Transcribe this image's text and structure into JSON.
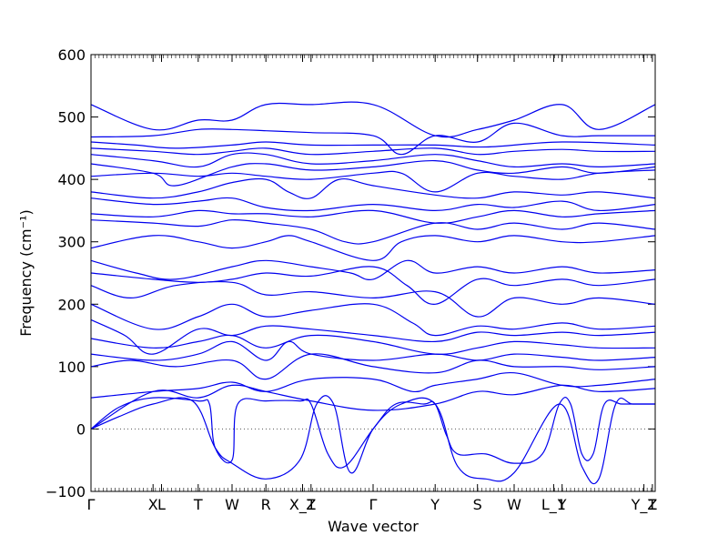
{
  "chart_data": {
    "type": "line",
    "xlabel": "Wave vector",
    "ylabel": "Frequency (cm⁻¹)",
    "ylim": [
      -100,
      600
    ],
    "yticks": [
      -100,
      0,
      100,
      200,
      300,
      400,
      500,
      600
    ],
    "ytick_labels": [
      "−100",
      "0",
      "100",
      "200",
      "300",
      "400",
      "500",
      "600"
    ],
    "x_segments": [
      {
        "label": "Γ",
        "x": 0.0
      },
      {
        "label": "X",
        "x": 1.1
      },
      {
        "label": "L",
        "x": 1.25
      },
      {
        "label": "T",
        "x": 1.9
      },
      {
        "label": "W",
        "x": 2.5
      },
      {
        "label": "R",
        "x": 3.1
      },
      {
        "label": "X_1",
        "x": 3.75
      },
      {
        "label": "Z",
        "x": 3.9
      },
      {
        "label": "Γ",
        "x": 5.0
      },
      {
        "label": "Y",
        "x": 6.1
      },
      {
        "label": "S",
        "x": 6.85
      },
      {
        "label": "W",
        "x": 7.5
      },
      {
        "label": "L_1",
        "x": 8.2
      },
      {
        "label": "Y",
        "x": 8.35
      },
      {
        "label": "Y_1",
        "x": 9.8
      },
      {
        "label": "Z",
        "x": 9.95
      }
    ],
    "xlim": [
      0,
      10.0
    ],
    "zero_line": true,
    "line_color": "#0000ee",
    "series": [
      {
        "x": [
          0,
          1.1,
          1.9,
          2.5,
          3.1,
          3.9,
          5.0,
          6.1,
          6.85,
          7.5,
          8.35,
          9.0,
          10.0
        ],
        "y": [
          520,
          480,
          495,
          495,
          520,
          520,
          520,
          470,
          480,
          495,
          520,
          480,
          520
        ]
      },
      {
        "x": [
          0,
          1.1,
          1.9,
          2.5,
          3.1,
          3.9,
          5.0,
          5.5,
          6.1,
          6.85,
          7.5,
          8.35,
          9.0,
          10.0
        ],
        "y": [
          468,
          470,
          480,
          480,
          478,
          475,
          470,
          440,
          470,
          460,
          490,
          470,
          470,
          470
        ]
      },
      {
        "x": [
          0,
          0.8,
          1.5,
          2.5,
          3.1,
          3.9,
          5.0,
          6.1,
          7.0,
          8.35,
          10.0
        ],
        "y": [
          460,
          455,
          450,
          455,
          460,
          455,
          455,
          455,
          452,
          460,
          455
        ]
      },
      {
        "x": [
          0,
          1.1,
          1.9,
          2.5,
          3.1,
          3.9,
          5.0,
          6.1,
          6.85,
          7.5,
          8.35,
          9.0,
          10.0
        ],
        "y": [
          450,
          445,
          440,
          445,
          450,
          440,
          445,
          450,
          440,
          445,
          448,
          445,
          445
        ]
      },
      {
        "x": [
          0,
          1.1,
          1.9,
          2.5,
          3.1,
          3.9,
          5.0,
          6.1,
          6.85,
          7.5,
          8.35,
          9.0,
          10.0
        ],
        "y": [
          440,
          430,
          420,
          440,
          440,
          425,
          430,
          440,
          430,
          420,
          425,
          420,
          425
        ]
      },
      {
        "x": [
          0,
          1.1,
          1.5,
          2.5,
          3.1,
          3.9,
          5.0,
          6.1,
          6.85,
          7.5,
          8.35,
          9.0,
          10.0
        ],
        "y": [
          425,
          410,
          390,
          420,
          425,
          415,
          420,
          430,
          415,
          410,
          420,
          410,
          420
        ]
      },
      {
        "x": [
          0,
          1.1,
          1.9,
          2.5,
          3.1,
          3.9,
          5.0,
          5.5,
          6.1,
          6.85,
          7.5,
          8.35,
          9.0,
          10.0
        ],
        "y": [
          405,
          410,
          405,
          410,
          405,
          400,
          410,
          410,
          380,
          410,
          405,
          400,
          410,
          415
        ]
      },
      {
        "x": [
          0,
          1.1,
          1.9,
          2.5,
          3.1,
          3.5,
          3.9,
          4.4,
          5.0,
          6.1,
          6.85,
          7.5,
          8.35,
          9.0,
          10.0
        ],
        "y": [
          380,
          370,
          380,
          395,
          400,
          380,
          370,
          400,
          390,
          375,
          370,
          380,
          375,
          380,
          370
        ]
      },
      {
        "x": [
          0,
          1.1,
          1.9,
          2.5,
          3.1,
          3.9,
          5.0,
          6.1,
          6.85,
          7.5,
          8.35,
          9.0,
          10.0
        ],
        "y": [
          370,
          360,
          365,
          370,
          355,
          350,
          360,
          350,
          360,
          355,
          365,
          350,
          360
        ]
      },
      {
        "x": [
          0,
          1.1,
          1.9,
          2.5,
          3.1,
          3.9,
          5.0,
          6.1,
          6.85,
          7.5,
          8.35,
          9.0,
          10.0
        ],
        "y": [
          345,
          340,
          350,
          345,
          345,
          340,
          350,
          330,
          340,
          350,
          340,
          345,
          350
        ]
      },
      {
        "x": [
          0,
          1.1,
          1.9,
          2.5,
          3.1,
          3.9,
          4.5,
          5.0,
          6.1,
          6.85,
          7.5,
          8.35,
          9.0,
          10.0
        ],
        "y": [
          335,
          330,
          325,
          335,
          330,
          320,
          300,
          300,
          330,
          320,
          330,
          320,
          330,
          320
        ]
      },
      {
        "x": [
          0,
          1.1,
          1.9,
          2.5,
          3.1,
          3.5,
          3.9,
          5.0,
          5.5,
          6.1,
          6.85,
          7.5,
          8.35,
          9.0,
          10.0
        ],
        "y": [
          290,
          310,
          300,
          290,
          300,
          310,
          300,
          270,
          300,
          310,
          300,
          310,
          300,
          300,
          310
        ]
      },
      {
        "x": [
          0,
          0.8,
          1.5,
          2.5,
          3.1,
          3.9,
          4.6,
          5.0,
          5.6,
          6.1,
          6.85,
          7.5,
          8.35,
          9.0,
          10.0
        ],
        "y": [
          270,
          250,
          240,
          260,
          270,
          260,
          250,
          240,
          270,
          250,
          260,
          250,
          260,
          250,
          255
        ]
      },
      {
        "x": [
          0,
          1.1,
          1.9,
          2.5,
          3.1,
          3.9,
          5.0,
          5.6,
          6.1,
          6.85,
          7.5,
          8.35,
          9.0,
          10.0
        ],
        "y": [
          250,
          240,
          235,
          240,
          250,
          245,
          260,
          230,
          200,
          240,
          230,
          240,
          230,
          240
        ]
      },
      {
        "x": [
          0,
          0.7,
          1.5,
          2.5,
          3.1,
          3.9,
          5.0,
          6.1,
          6.85,
          7.5,
          8.35,
          9.0,
          10.0
        ],
        "y": [
          230,
          210,
          230,
          235,
          215,
          220,
          210,
          220,
          180,
          210,
          200,
          210,
          200
        ]
      },
      {
        "x": [
          0,
          1.1,
          1.9,
          2.5,
          3.1,
          3.9,
          5.0,
          5.7,
          6.1,
          6.85,
          7.5,
          8.35,
          9.0,
          10.0
        ],
        "y": [
          200,
          160,
          180,
          200,
          180,
          190,
          200,
          170,
          150,
          165,
          160,
          170,
          160,
          165
        ]
      },
      {
        "x": [
          0,
          0.6,
          1.1,
          1.9,
          2.5,
          3.1,
          3.9,
          5.0,
          6.1,
          6.85,
          7.5,
          8.35,
          9.0,
          10.0
        ],
        "y": [
          175,
          150,
          120,
          160,
          150,
          165,
          160,
          150,
          140,
          155,
          150,
          155,
          150,
          155
        ]
      },
      {
        "x": [
          0,
          1.1,
          1.9,
          2.5,
          3.1,
          3.9,
          5.0,
          6.1,
          6.85,
          7.5,
          8.35,
          9.0,
          10.0
        ],
        "y": [
          145,
          130,
          140,
          150,
          130,
          150,
          140,
          120,
          130,
          140,
          135,
          130,
          130
        ]
      },
      {
        "x": [
          0,
          1.1,
          1.9,
          2.5,
          3.1,
          3.5,
          3.9,
          5.0,
          6.1,
          6.85,
          7.5,
          8.35,
          9.0,
          10.0
        ],
        "y": [
          120,
          110,
          120,
          140,
          110,
          140,
          120,
          110,
          120,
          110,
          120,
          115,
          110,
          115
        ]
      },
      {
        "x": [
          0,
          0.7,
          1.5,
          2.5,
          3.1,
          3.9,
          5.0,
          6.1,
          6.85,
          7.5,
          8.35,
          9.0,
          10.0
        ],
        "y": [
          100,
          110,
          100,
          110,
          80,
          120,
          100,
          90,
          110,
          100,
          100,
          95,
          100
        ]
      },
      {
        "x": [
          0,
          1.1,
          1.9,
          2.5,
          3.1,
          3.9,
          5.0,
          5.7,
          6.1,
          6.85,
          7.5,
          8.35,
          9.0,
          10.0
        ],
        "y": [
          50,
          60,
          65,
          75,
          60,
          80,
          80,
          60,
          70,
          80,
          90,
          70,
          70,
          80
        ]
      },
      {
        "x": [
          0,
          1.1,
          1.9,
          2.5,
          3.1,
          3.9,
          5.0,
          6.1,
          6.85,
          7.5,
          8.35,
          9.0,
          10.0
        ],
        "y": [
          0,
          60,
          50,
          70,
          60,
          45,
          30,
          40,
          60,
          55,
          70,
          60,
          65
        ]
      },
      {
        "x": [
          0,
          0.5,
          1.1,
          1.9,
          2.1,
          2.2,
          2.5,
          2.6,
          3.1,
          3.7,
          3.9,
          4.2,
          4.5,
          5.0,
          5.4,
          5.9,
          6.1,
          6.3,
          6.5,
          7.0,
          7.5,
          8.0,
          8.3,
          8.5,
          8.7,
          8.9,
          9.1,
          9.4,
          9.7,
          10.0
        ],
        "y": [
          0,
          35,
          50,
          45,
          40,
          -30,
          -50,
          40,
          45,
          45,
          40,
          -40,
          -60,
          0,
          40,
          40,
          40,
          -10,
          -40,
          -40,
          -55,
          -40,
          40,
          40,
          -40,
          -40,
          40,
          40,
          40,
          40
        ]
      },
      {
        "x": [
          0,
          0.5,
          1.1,
          1.8,
          2.2,
          2.5,
          3.1,
          3.7,
          4.0,
          4.3,
          4.6,
          5.0,
          5.5,
          6.1,
          6.5,
          7.0,
          7.5,
          8.3,
          8.7,
          9.0,
          9.3,
          9.6,
          10.0
        ],
        "y": [
          0,
          20,
          40,
          45,
          -30,
          -55,
          -80,
          -50,
          40,
          40,
          -70,
          0,
          40,
          40,
          -60,
          -80,
          -70,
          40,
          -60,
          -80,
          40,
          40,
          40
        ]
      }
    ]
  }
}
